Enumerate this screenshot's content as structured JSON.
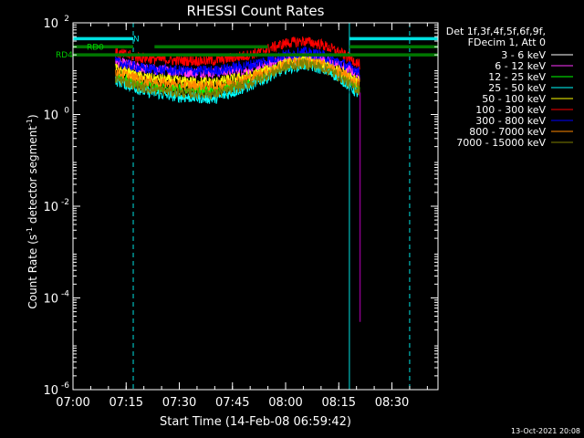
{
  "chart_data": {
    "type": "line",
    "title": "RHESSI Count Rates",
    "xlabel": "Start Time (14-Feb-08 06:59:42)",
    "ylabel": "Count Rate (s⁻¹ detector segment⁻¹)",
    "ylabel_parts": {
      "main": "Count Rate (s",
      "exp1": "-1",
      "mid": " detector segment",
      "exp2": "-1",
      "end": ")"
    },
    "y_scale": "log",
    "ylim": [
      1e-06,
      100
    ],
    "xlim": [
      "07:00",
      "08:43"
    ],
    "x_ticks": [
      "07:00",
      "07:15",
      "07:30",
      "07:45",
      "08:00",
      "08:15",
      "08:30"
    ],
    "y_ticks": [
      {
        "value": 100,
        "base": "10",
        "exp": "2"
      },
      {
        "value": 1,
        "base": "10",
        "exp": "0"
      },
      {
        "value": 0.01,
        "base": "10",
        "exp": "-2"
      },
      {
        "value": 0.0001,
        "base": "10",
        "exp": "-4"
      },
      {
        "value": 1e-06,
        "base": "10",
        "exp": "-6"
      }
    ],
    "legend": {
      "placement": "right",
      "header": [
        "Det 1f,3f,4f,5f,6f,9f,",
        "FDecim 1, Att 0"
      ],
      "entries": [
        {
          "label": "3 - 6 keV",
          "color": "#ffffff"
        },
        {
          "label": "6 - 12 keV",
          "color": "#ff33ff"
        },
        {
          "label": "12 - 25 keV",
          "color": "#00ff00"
        },
        {
          "label": "25 - 50 keV",
          "color": "#00ffff"
        },
        {
          "label": "50 - 100 keV",
          "color": "#ffff00"
        },
        {
          "label": "100 - 300 keV",
          "color": "#ff0000"
        },
        {
          "label": "300 - 800 keV",
          "color": "#0000ff"
        },
        {
          "label": "800 - 7000 keV",
          "color": "#ff8800"
        },
        {
          "label": "7000 - 15000 keV",
          "color": "#808000"
        }
      ]
    },
    "series": [
      {
        "name": "3 - 6 keV",
        "color": "#000000",
        "x": [
          "07:12",
          "07:20",
          "07:30",
          "07:40",
          "07:50",
          "08:00",
          "08:05",
          "08:10",
          "08:15",
          "08:20",
          "08:21"
        ],
        "y": [
          4.5,
          2.4,
          1.6,
          1.5,
          3.0,
          7.5,
          9.0,
          8.2,
          5.0,
          2.2,
          2.0
        ]
      },
      {
        "name": "6 - 12 keV",
        "color": "#ff33ff",
        "x": [
          "07:12",
          "07:20",
          "07:30",
          "07:40",
          "07:50",
          "08:00",
          "08:05",
          "08:10",
          "08:15",
          "08:20",
          "08:21"
        ],
        "y": [
          14,
          10,
          8.5,
          8.2,
          9.6,
          16,
          18,
          16,
          12,
          8,
          7
        ]
      },
      {
        "name": "12 - 25 keV",
        "color": "#00ff00",
        "x": [
          "07:12",
          "07:20",
          "07:30",
          "07:40",
          "07:50",
          "08:00",
          "08:05",
          "08:10",
          "08:15",
          "08:20",
          "08:21"
        ],
        "y": [
          7,
          4.5,
          3.6,
          3.3,
          5.5,
          12,
          14,
          12,
          8,
          4.4,
          4
        ]
      },
      {
        "name": "25 - 50 keV",
        "color": "#00ffff",
        "x": [
          "07:12",
          "07:20",
          "07:30",
          "07:40",
          "07:50",
          "08:00",
          "08:05",
          "08:10",
          "08:15",
          "08:20",
          "08:21"
        ],
        "y": [
          5.5,
          3.2,
          2.4,
          2.2,
          4.2,
          10,
          12,
          10,
          6.5,
          3,
          2.8
        ]
      },
      {
        "name": "50 - 100 keV",
        "color": "#ffff00",
        "x": [
          "07:12",
          "07:20",
          "07:30",
          "07:40",
          "07:50",
          "08:00",
          "08:05",
          "08:10",
          "08:15",
          "08:20",
          "08:21"
        ],
        "y": [
          10,
          6.5,
          5.3,
          5,
          7,
          13,
          15,
          13,
          9.5,
          6,
          5.5
        ]
      },
      {
        "name": "100 - 300 keV",
        "color": "#ff0000",
        "x": [
          "07:12",
          "07:20",
          "07:30",
          "07:40",
          "07:50",
          "08:00",
          "08:05",
          "08:10",
          "08:15",
          "08:20",
          "08:21"
        ],
        "y": [
          22,
          17,
          15,
          15,
          20,
          36,
          40,
          34,
          23,
          14,
          12
        ]
      },
      {
        "name": "300 - 800 keV",
        "color": "#0000ff",
        "x": [
          "07:12",
          "07:20",
          "07:30",
          "07:40",
          "07:50",
          "08:00",
          "08:05",
          "08:10",
          "08:15",
          "08:20",
          "08:21"
        ],
        "y": [
          14,
          10,
          9,
          9,
          12,
          20,
          23,
          20,
          14,
          9.5,
          8
        ]
      },
      {
        "name": "800 - 7000 keV",
        "color": "#ff8800",
        "x": [
          "07:12",
          "07:20",
          "07:30",
          "07:40",
          "07:50",
          "08:00",
          "08:05",
          "08:10",
          "08:15",
          "08:20",
          "08:21"
        ],
        "y": [
          8.5,
          5.5,
          4.5,
          4.2,
          6.3,
          12.5,
          14.5,
          12.5,
          8.6,
          5,
          4.6
        ]
      },
      {
        "name": "7000 - 15000 keV",
        "color": "#808000",
        "x": [
          "07:12",
          "07:20",
          "07:30",
          "07:40",
          "07:50",
          "08:00",
          "08:05",
          "08:10",
          "08:15",
          "08:20",
          "08:21"
        ],
        "y": [
          6,
          3.8,
          3,
          2.8,
          4.8,
          11,
          13,
          11,
          7,
          3.6,
          3.3
        ]
      }
    ],
    "dropout": {
      "x": "08:21",
      "y": 3e-05
    },
    "markers": [
      {
        "label": "RD0",
        "color": "#007700",
        "y": 30,
        "segments": [
          [
            "07:00",
            "07:17"
          ],
          [
            "07:23",
            "07:55"
          ],
          [
            "08:18",
            "08:43"
          ]
        ]
      },
      {
        "label": "RD4",
        "color": "#007700",
        "y": 20,
        "segments": [
          [
            "07:00",
            "08:43"
          ]
        ]
      },
      {
        "label": "N",
        "color": "#00e0e0",
        "y": 45,
        "segments": [
          [
            "07:00",
            "07:17"
          ],
          [
            "08:18",
            "08:43"
          ]
        ]
      }
    ],
    "vlines": [
      {
        "x": "07:00",
        "color": "#00e0e0",
        "style": "solid"
      },
      {
        "x": "07:17",
        "color": "#00e0e0",
        "style": "dashed"
      },
      {
        "x": "08:18",
        "color": "#00e0e0",
        "style": "solid"
      },
      {
        "x": "08:35",
        "color": "#00e0e0",
        "style": "dashed"
      }
    ],
    "timestamp": "13-Oct-2021 20:08"
  }
}
